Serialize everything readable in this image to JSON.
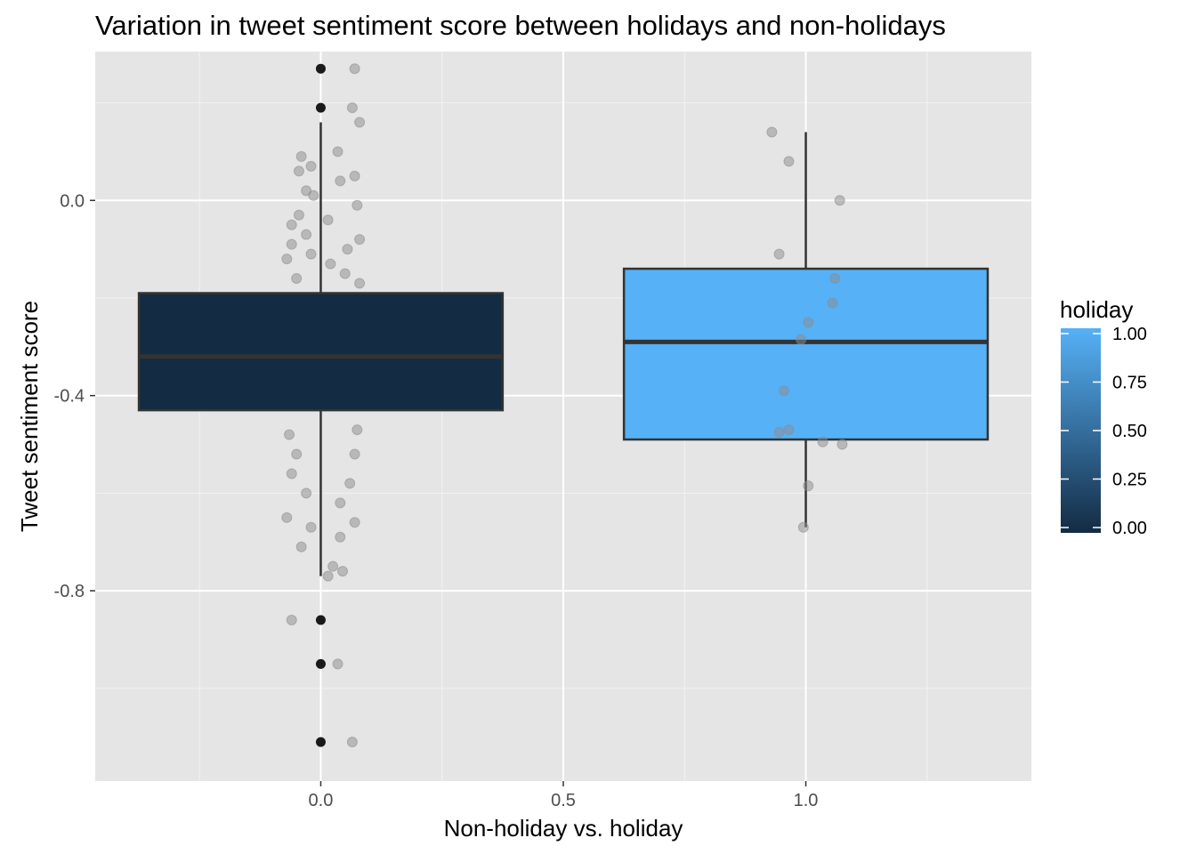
{
  "chart_data": {
    "type": "boxplot",
    "title": "Variation in tweet sentiment score between holidays and non-holidays",
    "xlabel": "Non-holiday vs. holiday",
    "ylabel": "Tweet sentiment score",
    "xlim": [
      -0.465,
      1.465
    ],
    "ylim": [
      -1.19,
      0.305
    ],
    "x_ticks": [
      0.0,
      0.5,
      1.0
    ],
    "x_tick_labels": [
      "0.0",
      "0.5",
      "1.0"
    ],
    "y_ticks": [
      0.0,
      -0.4,
      -0.8
    ],
    "y_tick_labels": [
      "0.0",
      "-0.4",
      "-0.8"
    ],
    "grid": true,
    "panel_background": "#e5e5e5",
    "boxes": [
      {
        "x": 0,
        "fill": "#132b43",
        "holiday": 0,
        "q1": -0.43,
        "median": -0.32,
        "q3": -0.19,
        "whisker_low": -0.77,
        "whisker_high": 0.16,
        "outliers": [
          0.27,
          0.19,
          -0.86,
          -0.95,
          -1.11
        ]
      },
      {
        "x": 1,
        "fill": "#56b1f7",
        "holiday": 1,
        "q1": -0.49,
        "median": -0.29,
        "q3": -0.14,
        "whisker_low": -0.67,
        "whisker_high": 0.14,
        "outliers": []
      }
    ],
    "jitter_points": [
      {
        "x": 0.07,
        "y": 0.27
      },
      {
        "x": 0.065,
        "y": 0.19
      },
      {
        "x": 0.08,
        "y": 0.16
      },
      {
        "x": -0.06,
        "y": -0.86
      },
      {
        "x": 0.035,
        "y": -0.95
      },
      {
        "x": 0.065,
        "y": -1.11
      },
      {
        "x": 0.035,
        "y": 0.1
      },
      {
        "x": -0.04,
        "y": 0.09
      },
      {
        "x": -0.02,
        "y": 0.07
      },
      {
        "x": 0.07,
        "y": 0.05
      },
      {
        "x": -0.045,
        "y": 0.06
      },
      {
        "x": 0.04,
        "y": 0.04
      },
      {
        "x": -0.03,
        "y": 0.02
      },
      {
        "x": -0.045,
        "y": -0.03
      },
      {
        "x": -0.06,
        "y": -0.05
      },
      {
        "x": 0.075,
        "y": -0.01
      },
      {
        "x": -0.06,
        "y": -0.09
      },
      {
        "x": 0.08,
        "y": -0.08
      },
      {
        "x": -0.03,
        "y": -0.07
      },
      {
        "x": 0.055,
        "y": -0.1
      },
      {
        "x": -0.07,
        "y": -0.12
      },
      {
        "x": 0.05,
        "y": -0.15
      },
      {
        "x": -0.05,
        "y": -0.16
      },
      {
        "x": 0.08,
        "y": -0.17
      },
      {
        "x": -0.06,
        "y": -0.56
      },
      {
        "x": 0.06,
        "y": -0.58
      },
      {
        "x": -0.03,
        "y": -0.6
      },
      {
        "x": 0.04,
        "y": -0.62
      },
      {
        "x": -0.07,
        "y": -0.65
      },
      {
        "x": 0.07,
        "y": -0.66
      },
      {
        "x": -0.02,
        "y": -0.67
      },
      {
        "x": 0.04,
        "y": -0.69
      },
      {
        "x": -0.04,
        "y": -0.71
      },
      {
        "x": 0.025,
        "y": -0.75
      },
      {
        "x": 0.045,
        "y": -0.76
      },
      {
        "x": 0.015,
        "y": -0.77
      },
      {
        "x": -0.05,
        "y": -0.52
      },
      {
        "x": 0.07,
        "y": -0.52
      },
      {
        "x": -0.065,
        "y": -0.48
      },
      {
        "x": 0.075,
        "y": -0.47
      },
      {
        "x": -0.015,
        "y": 0.01
      },
      {
        "x": 0.015,
        "y": -0.04
      },
      {
        "x": -0.02,
        "y": -0.11
      },
      {
        "x": 0.02,
        "y": -0.13
      },
      {
        "x": 0.93,
        "y": 0.14
      },
      {
        "x": 0.965,
        "y": 0.08
      },
      {
        "x": 1.07,
        "y": 0.0
      },
      {
        "x": 0.945,
        "y": -0.11
      },
      {
        "x": 1.06,
        "y": -0.16
      },
      {
        "x": 1.055,
        "y": -0.21
      },
      {
        "x": 1.005,
        "y": -0.25
      },
      {
        "x": 0.99,
        "y": -0.285
      },
      {
        "x": 0.955,
        "y": -0.39
      },
      {
        "x": 0.965,
        "y": -0.47
      },
      {
        "x": 0.945,
        "y": -0.475
      },
      {
        "x": 1.035,
        "y": -0.495
      },
      {
        "x": 1.075,
        "y": -0.5
      },
      {
        "x": 1.005,
        "y": -0.585
      },
      {
        "x": 0.995,
        "y": -0.67
      }
    ],
    "legend": {
      "title": "holiday",
      "position": "right",
      "type": "colorbar",
      "low_color": "#132b43",
      "high_color": "#56b1f7",
      "breaks": [
        1.0,
        0.75,
        0.5,
        0.25,
        0.0
      ],
      "labels": [
        "1.00",
        "0.75",
        "0.50",
        "0.25",
        "0.00"
      ]
    }
  }
}
